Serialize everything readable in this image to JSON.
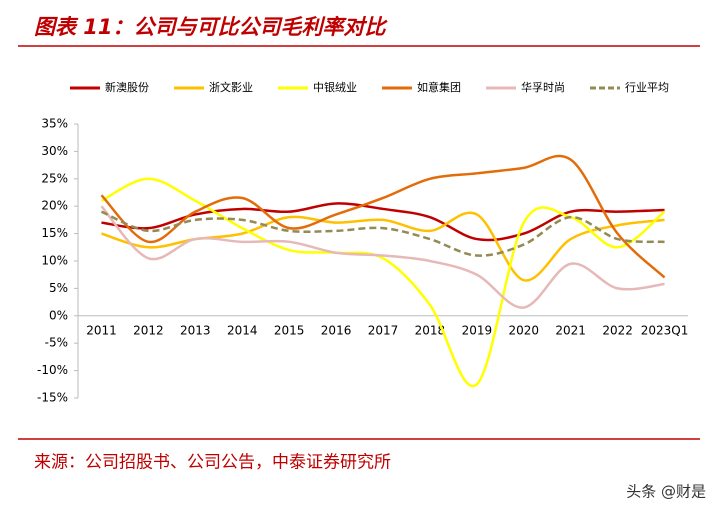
{
  "chart_data": {
    "type": "line",
    "title": "图表 11：公司与可比公司毛利率对比",
    "source": "来源：公司招股书、公司公告，中泰证券研究所",
    "watermark": "头条 @财是",
    "categories": [
      "2011",
      "2012",
      "2013",
      "2014",
      "2015",
      "2016",
      "2017",
      "2018",
      "2019",
      "2020",
      "2021",
      "2022",
      "2023Q1"
    ],
    "series": [
      {
        "name": "新澳股份",
        "color": "#c00000",
        "values": [
          17,
          16,
          18.5,
          19.5,
          19,
          20.5,
          19.5,
          18,
          14,
          15,
          19,
          19,
          19.3
        ]
      },
      {
        "name": "浙文影业",
        "color": "#ffc000",
        "values": [
          15,
          12.5,
          14,
          15,
          18,
          17,
          17.5,
          15.5,
          18.5,
          6.5,
          14,
          16.5,
          17.5
        ]
      },
      {
        "name": "中银绒业",
        "color": "#ffff00",
        "values": [
          21,
          25,
          21,
          16,
          12,
          11.5,
          10.5,
          2,
          -12.5,
          17,
          18,
          12.5,
          19
        ]
      },
      {
        "name": "如意集团",
        "color": "#e36c0a",
        "values": [
          22,
          13.5,
          19,
          21.5,
          16,
          18.5,
          21.5,
          25,
          26,
          27,
          28.5,
          15,
          7
        ]
      },
      {
        "name": "华孚时尚",
        "color": "#e6b9b8",
        "values": [
          20,
          10.5,
          14,
          13.5,
          13.5,
          11.5,
          11,
          10,
          7.5,
          1.5,
          9.5,
          5,
          5.8
        ]
      },
      {
        "name": "行业平均",
        "color": "#948a54",
        "dashed": true,
        "values": [
          19,
          15.5,
          17.5,
          17.5,
          15.5,
          15.5,
          16,
          14,
          11,
          13,
          18,
          14,
          13.5
        ]
      }
    ],
    "ylim": [
      -15,
      35
    ],
    "yticks": [
      {
        "value": -15,
        "label": "-15%"
      },
      {
        "value": -10,
        "label": "-10%"
      },
      {
        "value": -5,
        "label": "-5%"
      },
      {
        "value": 0,
        "label": "0%"
      },
      {
        "value": 5,
        "label": "5%"
      },
      {
        "value": 10,
        "label": "10%"
      },
      {
        "value": 15,
        "label": "15%"
      },
      {
        "value": 20,
        "label": "20%"
      },
      {
        "value": 25,
        "label": "25%"
      },
      {
        "value": 30,
        "label": "30%"
      },
      {
        "value": 35,
        "label": "35%"
      }
    ],
    "legend": "top",
    "smooth": true,
    "grid": false
  }
}
